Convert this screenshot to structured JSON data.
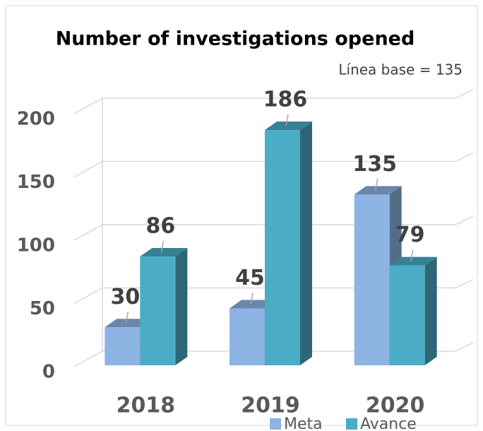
{
  "chart_data": {
    "type": "bar3d",
    "title": "Number of investigations opened",
    "subtitle": "Línea base = 135",
    "categories": [
      "2018",
      "2019",
      "2020"
    ],
    "series": [
      {
        "name": "Meta",
        "color": "#8db4e2",
        "values": [
          30,
          45,
          135
        ]
      },
      {
        "name": "Avance",
        "color": "#4bacc6",
        "values": [
          86,
          186,
          79
        ]
      }
    ],
    "ylim": [
      0,
      200
    ],
    "yticks": [
      0,
      50,
      100,
      150,
      200
    ],
    "grid": true,
    "legend": "bottom"
  }
}
